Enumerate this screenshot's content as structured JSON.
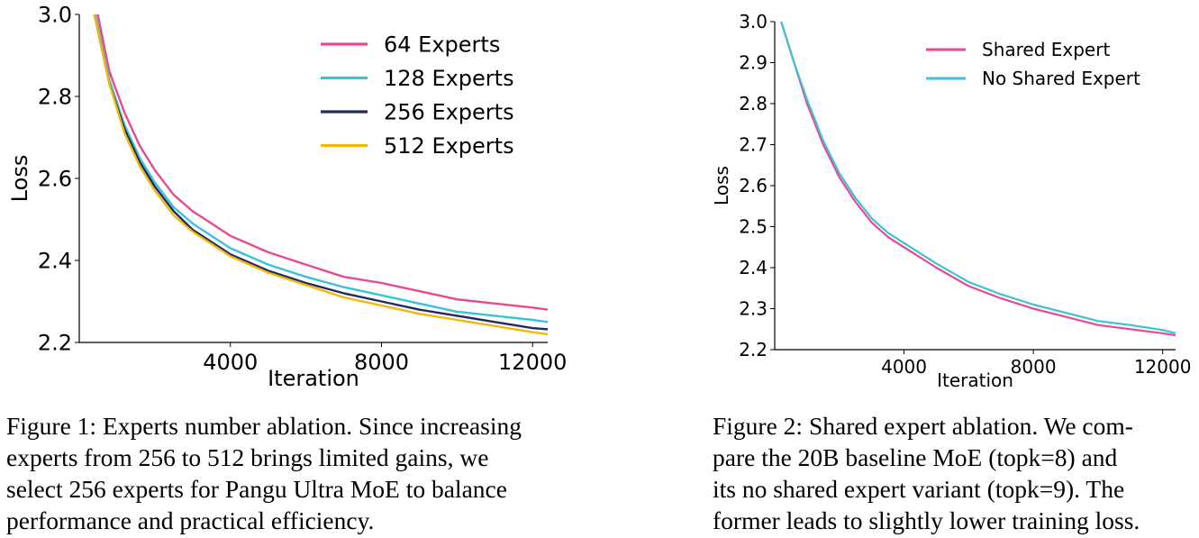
{
  "chart_data": [
    {
      "type": "line",
      "title": "",
      "xlabel": "Iteration",
      "ylabel": "Loss",
      "xlim": [
        0,
        12400
      ],
      "ylim": [
        2.2,
        3.0
      ],
      "xticks": [
        4000,
        8000,
        12000
      ],
      "xtick_labels": [
        "4000",
        "8000",
        "12000"
      ],
      "yticks": [
        2.2,
        2.4,
        2.6,
        2.8,
        3.0
      ],
      "ytick_labels": [
        "2.2",
        "2.4",
        "2.6",
        "2.8",
        "3.0"
      ],
      "legend_position": "top-right",
      "x": [
        400,
        800,
        1200,
        1600,
        2000,
        2500,
        3000,
        3500,
        4000,
        5000,
        6000,
        7000,
        8000,
        9000,
        10000,
        11000,
        12000,
        12400
      ],
      "series": [
        {
          "name": "64 Experts",
          "color": "#e84a8f",
          "values": [
            3.04,
            2.86,
            2.76,
            2.68,
            2.62,
            2.56,
            2.52,
            2.49,
            2.46,
            2.42,
            2.39,
            2.36,
            2.345,
            2.325,
            2.305,
            2.295,
            2.285,
            2.28
          ]
        },
        {
          "name": "128 Experts",
          "color": "#3cc2d8",
          "values": [
            3.01,
            2.84,
            2.73,
            2.65,
            2.59,
            2.53,
            2.49,
            2.46,
            2.43,
            2.39,
            2.36,
            2.335,
            2.315,
            2.295,
            2.275,
            2.265,
            2.255,
            2.25
          ]
        },
        {
          "name": "256 Experts",
          "color": "#222a5e",
          "values": [
            3.0,
            2.83,
            2.72,
            2.64,
            2.58,
            2.52,
            2.475,
            2.445,
            2.415,
            2.375,
            2.345,
            2.32,
            2.3,
            2.28,
            2.265,
            2.25,
            2.235,
            2.232
          ]
        },
        {
          "name": "512 Experts",
          "color": "#f2b80c",
          "values": [
            3.0,
            2.83,
            2.71,
            2.63,
            2.57,
            2.51,
            2.47,
            2.44,
            2.41,
            2.37,
            2.34,
            2.31,
            2.29,
            2.27,
            2.255,
            2.24,
            2.225,
            2.22
          ]
        }
      ]
    },
    {
      "type": "line",
      "title": "",
      "xlabel": "Iteration",
      "ylabel": "Loss",
      "xlim": [
        0,
        12400
      ],
      "ylim": [
        2.2,
        3.0
      ],
      "xticks": [
        4000,
        8000,
        12000
      ],
      "xtick_labels": [
        "4000",
        "8000",
        "12000"
      ],
      "yticks": [
        2.2,
        2.3,
        2.4,
        2.5,
        2.6,
        2.7,
        2.8,
        2.9,
        3.0
      ],
      "ytick_labels": [
        "2.2",
        "2.3",
        "2.4",
        "2.5",
        "2.6",
        "2.7",
        "2.8",
        "2.9",
        "3.0"
      ],
      "legend_position": "top-right",
      "x": [
        200,
        600,
        1000,
        1500,
        2000,
        2500,
        3000,
        3500,
        4000,
        5000,
        6000,
        7000,
        8000,
        9000,
        10000,
        11000,
        12000,
        12400
      ],
      "series": [
        {
          "name": "Shared Expert",
          "color": "#e84a8f",
          "values": [
            3.0,
            2.9,
            2.8,
            2.7,
            2.62,
            2.56,
            2.51,
            2.475,
            2.45,
            2.4,
            2.355,
            2.325,
            2.3,
            2.28,
            2.26,
            2.25,
            2.24,
            2.235
          ]
        },
        {
          "name": "No Shared Expert",
          "color": "#3cc2d8",
          "values": [
            3.0,
            2.9,
            2.81,
            2.71,
            2.63,
            2.57,
            2.52,
            2.485,
            2.46,
            2.41,
            2.365,
            2.335,
            2.31,
            2.29,
            2.27,
            2.26,
            2.248,
            2.24
          ]
        }
      ]
    }
  ],
  "captions": [
    {
      "lines": [
        "Figure 1: Experts number ablation. Since increasing",
        "experts from 256 to 512 brings limited gains, we",
        "select 256 experts for Pangu Ultra MoE  to balance",
        "performance and practical efficiency."
      ]
    },
    {
      "lines": [
        "Figure 2: Shared expert ablation. We com-",
        "pare the 20B baseline MoE (topk=8) and",
        "its no shared expert variant (topk=9). The",
        "former leads to slightly lower training loss."
      ]
    }
  ]
}
